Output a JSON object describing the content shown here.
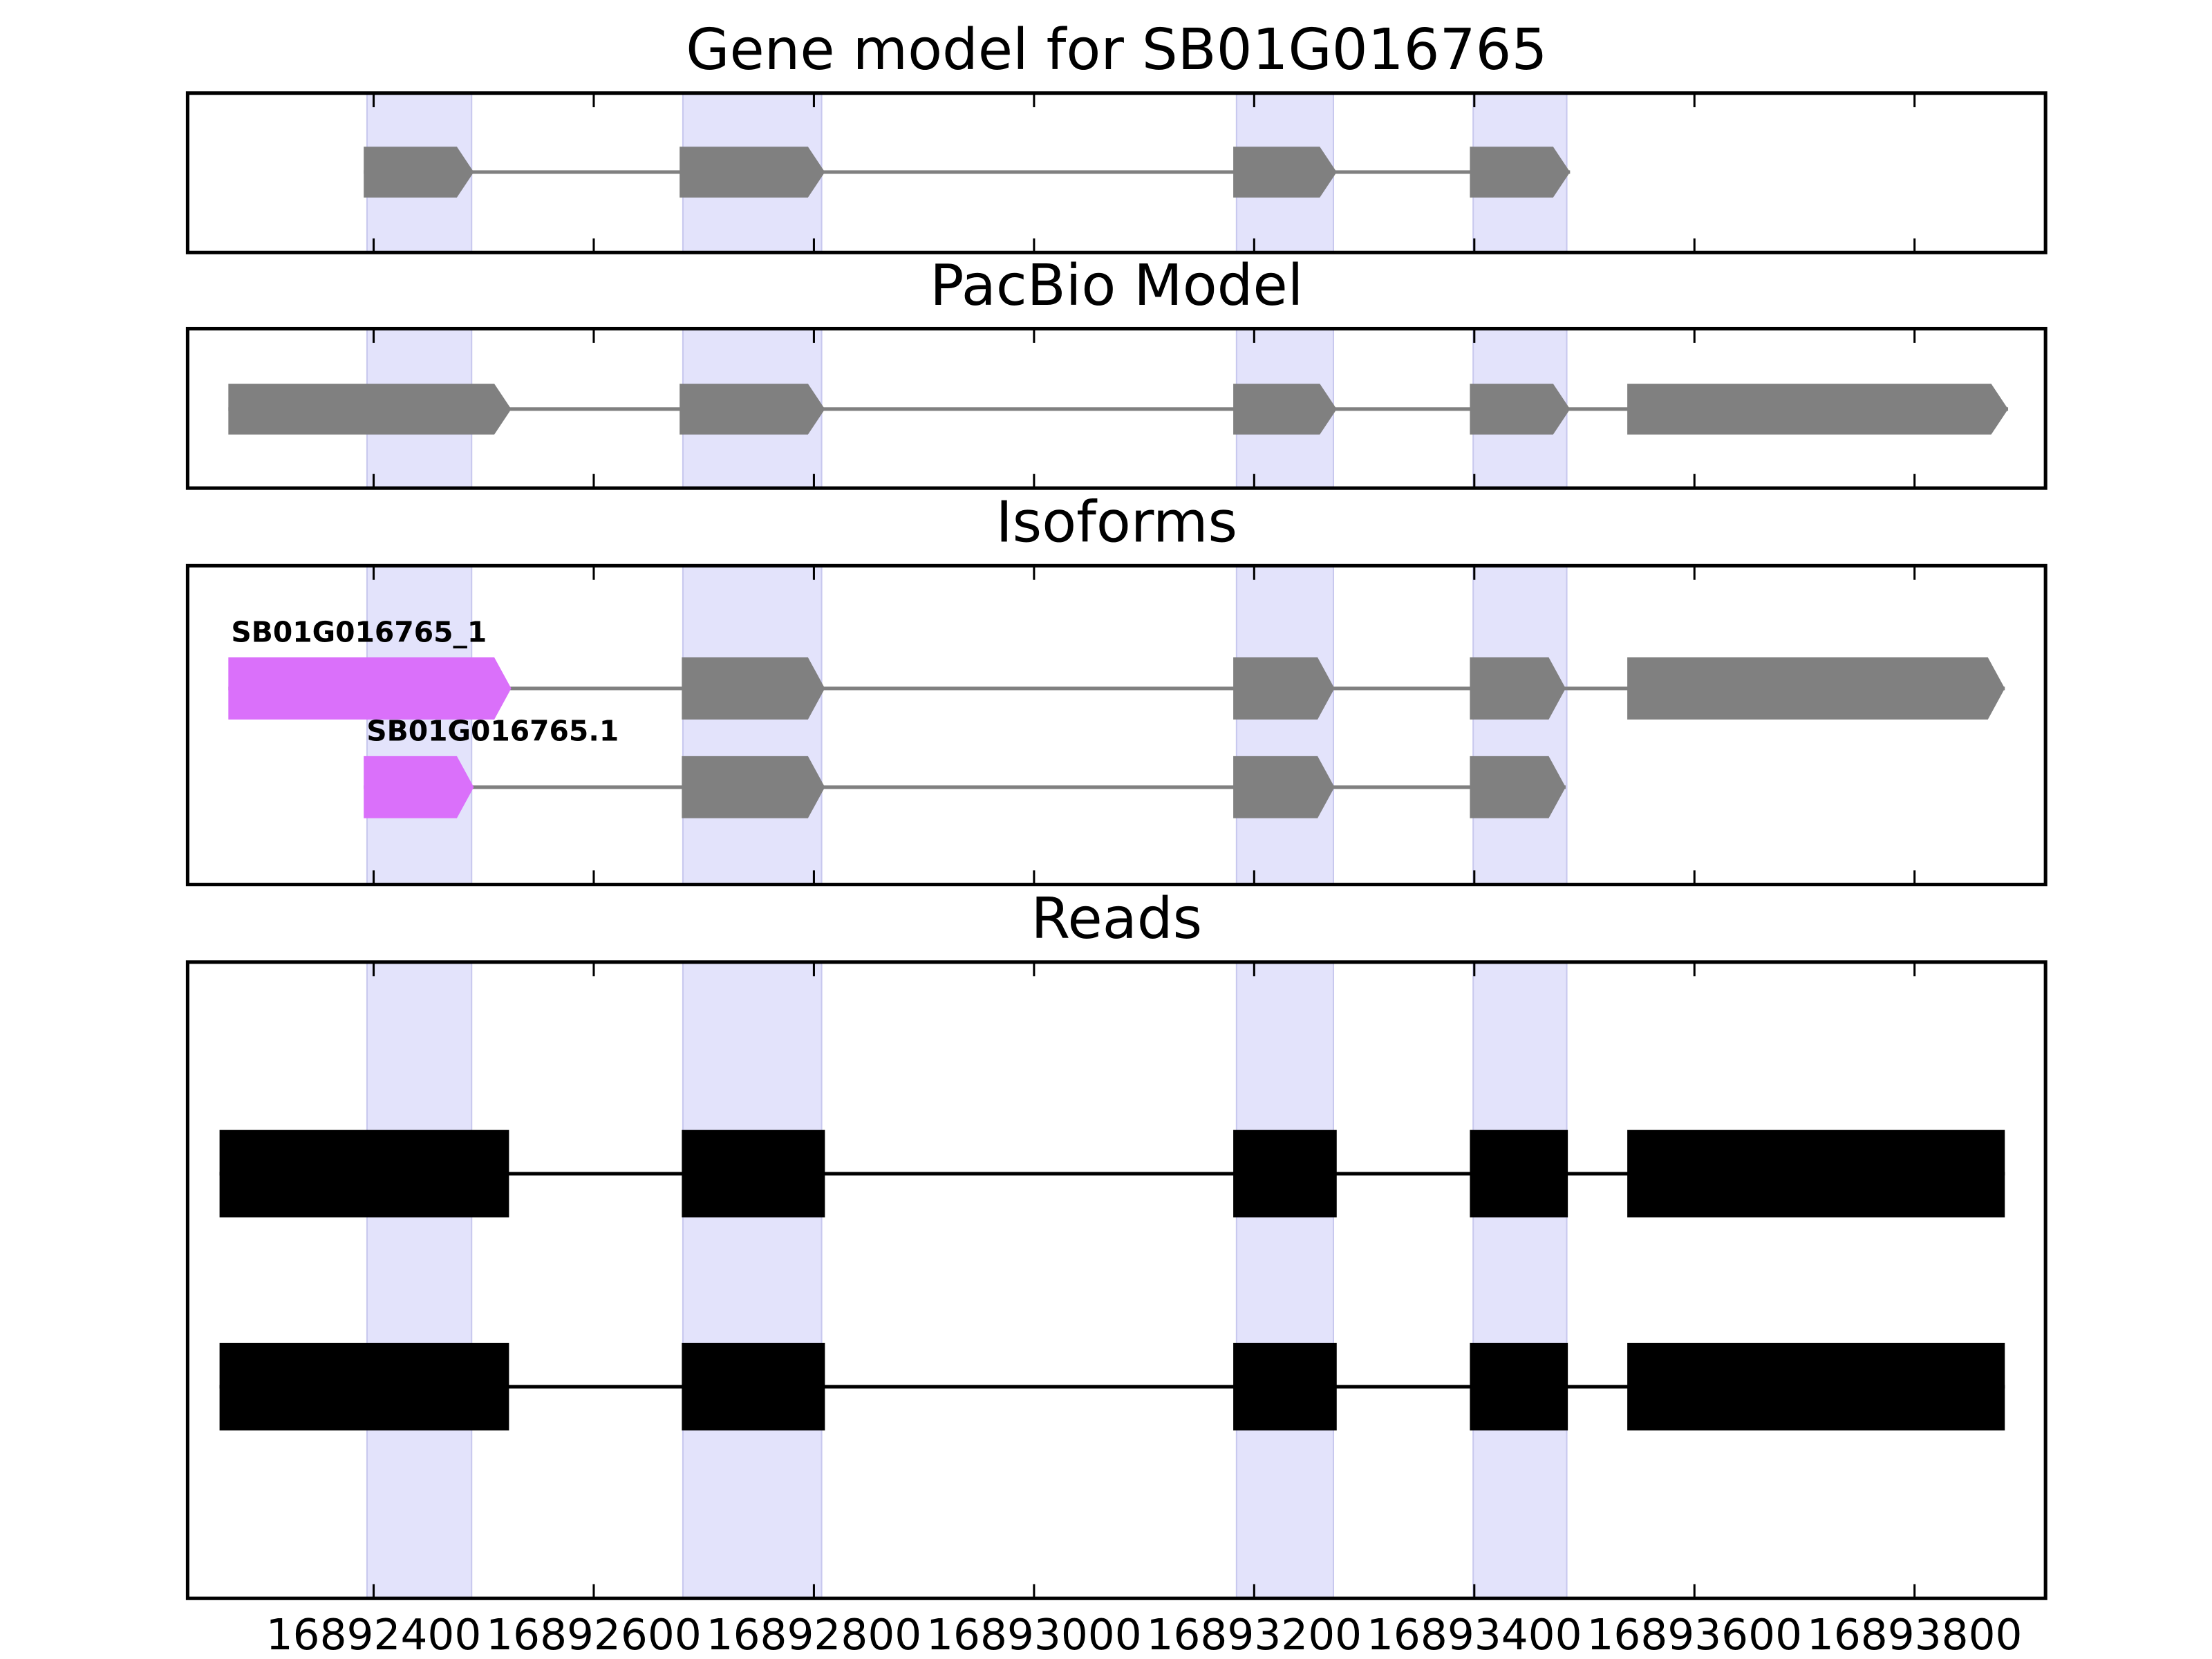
{
  "chart_data": {
    "type": "gene-model",
    "xlim": [
      16892231,
      16893919
    ],
    "xticks": [
      16892400,
      16892600,
      16892800,
      16893000,
      16893200,
      16893400,
      16893600,
      16893800
    ],
    "highlight_color": "#e3e3fb",
    "highlights": [
      [
        16892394,
        16892489
      ],
      [
        16892681,
        16892807
      ],
      [
        16893184,
        16893272
      ],
      [
        16893399,
        16893484
      ]
    ],
    "panels": [
      {
        "title": "Gene model for SB01G016765",
        "shape": "arrow",
        "tracks": [
          {
            "color": "#808080",
            "exons": [
              [
                16892391,
                16892491
              ],
              [
                16892678,
                16892810
              ],
              [
                16893181,
                16893275
              ],
              [
                16893396,
                16893487
              ]
            ]
          }
        ]
      },
      {
        "title": "PacBio Model",
        "shape": "arrow",
        "tracks": [
          {
            "color": "#808080",
            "exons": [
              [
                16892268,
                16892525
              ],
              [
                16892678,
                16892810
              ],
              [
                16893181,
                16893275
              ],
              [
                16893396,
                16893487
              ],
              [
                16893539,
                16893885
              ]
            ]
          }
        ]
      },
      {
        "title": "Isoforms",
        "shape": "arrow",
        "tracks": [
          {
            "label": "SB01G016765_1",
            "color": "#808080",
            "first_exon_color": "#da70fa",
            "exons": [
              [
                16892268,
                16892525
              ],
              [
                16892680,
                16892810
              ],
              [
                16893181,
                16893273
              ],
              [
                16893396,
                16893483
              ],
              [
                16893539,
                16893882
              ]
            ]
          },
          {
            "label": "SB01G016765.1",
            "color": "#808080",
            "first_exon_color": "#da70fa",
            "exons": [
              [
                16892391,
                16892491
              ],
              [
                16892680,
                16892810
              ],
              [
                16893181,
                16893273
              ],
              [
                16893396,
                16893483
              ]
            ]
          }
        ]
      },
      {
        "title": "Reads",
        "shape": "box",
        "tracks": [
          {
            "color": "#000000",
            "exons": [
              [
                16892260,
                16892523
              ],
              [
                16892680,
                16892810
              ],
              [
                16893181,
                16893275
              ],
              [
                16893396,
                16893485
              ],
              [
                16893539,
                16893882
              ]
            ]
          },
          {
            "color": "#000000",
            "exons": [
              [
                16892260,
                16892523
              ],
              [
                16892680,
                16892810
              ],
              [
                16893181,
                16893275
              ],
              [
                16893396,
                16893485
              ],
              [
                16893539,
                16893882
              ]
            ]
          }
        ]
      }
    ]
  }
}
